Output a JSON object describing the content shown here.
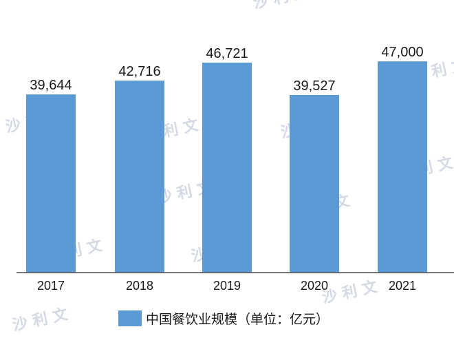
{
  "chart_data": {
    "type": "bar",
    "title": "",
    "xlabel": "",
    "ylabel": "",
    "categories": [
      "2017",
      "2018",
      "2019",
      "2020",
      "2021"
    ],
    "series": [
      {
        "name": "中国餐饮业规模（单位：亿元）",
        "values": [
          39644,
          42716,
          46721,
          39527,
          47000
        ],
        "value_labels": [
          "39,644",
          "42,716",
          "46,721",
          "39,527",
          "47,000"
        ],
        "color": "#5b9bd5"
      }
    ],
    "ylim": [
      0,
      50000
    ],
    "grid": false,
    "legend": "bottom-center"
  },
  "watermark": {
    "text": "沙 利 文"
  }
}
